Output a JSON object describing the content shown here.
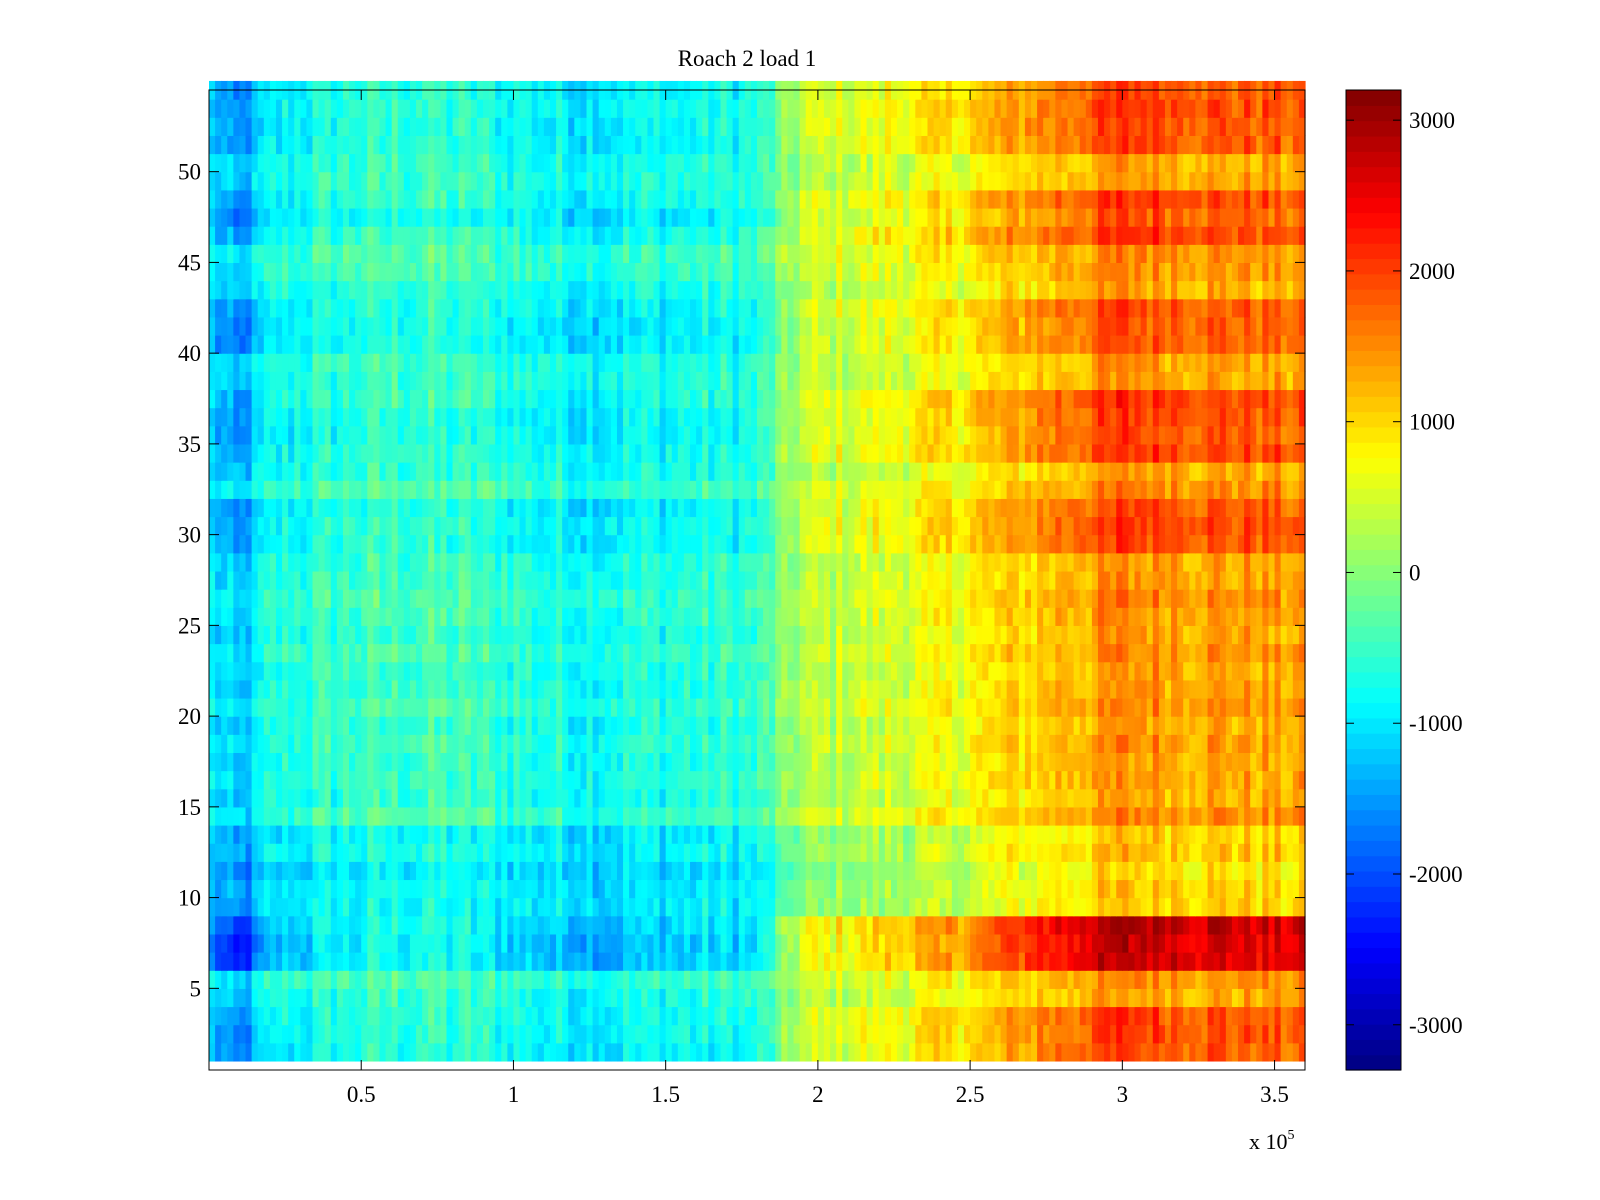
{
  "chart_data": {
    "type": "heatmap",
    "title": "Roach 2 load 1",
    "xlabel": "",
    "ylabel": "",
    "x_multiplier_label": "x 10",
    "x_multiplier_exponent": "5",
    "x_range": [
      0,
      3.6
    ],
    "y_range": [
      0.5,
      54.5
    ],
    "x_ticks": [
      0.5,
      1,
      1.5,
      2,
      2.5,
      3,
      3.5
    ],
    "x_tick_labels": [
      "0.5",
      "1",
      "1.5",
      "2",
      "2.5",
      "3",
      "3.5"
    ],
    "y_ticks": [
      5,
      10,
      15,
      20,
      25,
      30,
      35,
      40,
      45,
      50
    ],
    "y_tick_labels": [
      "5",
      "10",
      "15",
      "20",
      "25",
      "30",
      "35",
      "40",
      "45",
      "50"
    ],
    "rows": 54,
    "color_scale": "jet",
    "color_limits": [
      -3300,
      3200
    ],
    "colorbar_ticks": [
      3000,
      2000,
      1000,
      0,
      -1000,
      -2000,
      -3000
    ],
    "colorbar_tick_labels": [
      "3000",
      "2000",
      "1000",
      "0",
      "-1000",
      "-2000",
      "-3000"
    ],
    "column_trend": {
      "x": [
        0.0,
        0.1,
        0.2,
        0.3,
        0.5,
        0.7,
        0.9,
        1.2,
        1.4,
        1.6,
        1.8,
        1.95,
        2.2,
        2.45,
        2.7,
        3.0,
        3.3,
        3.6
      ],
      "mean_value": [
        -900,
        -1300,
        -700,
        -600,
        -450,
        -400,
        -500,
        -700,
        -650,
        -600,
        -550,
        300,
        500,
        700,
        1100,
        1500,
        1400,
        1300
      ]
    },
    "row_bands": [
      {
        "rows": [
          1,
          3
        ],
        "effect": "amplified"
      },
      {
        "rows": [
          6,
          8
        ],
        "effect": "strongly amplified"
      },
      {
        "rows": [
          9,
          13
        ],
        "effect": "shifted negative"
      },
      {
        "rows": [
          29,
          31
        ],
        "effect": "amplified"
      },
      {
        "rows": [
          34,
          37
        ],
        "effect": "amplified"
      },
      {
        "rows": [
          40,
          42
        ],
        "effect": "amplified"
      },
      {
        "rows": [
          46,
          48
        ],
        "effect": "amplified"
      },
      {
        "rows": [
          51,
          54
        ],
        "effect": "amplified"
      }
    ]
  }
}
